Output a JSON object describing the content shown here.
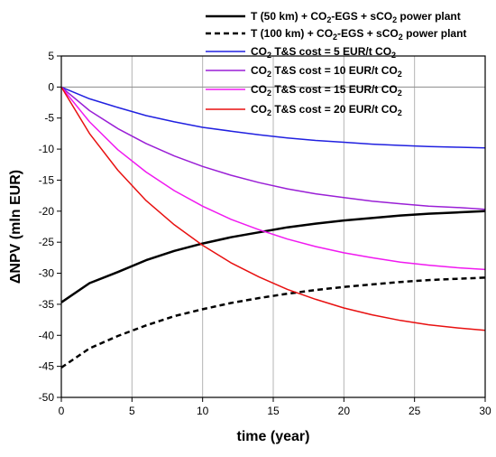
{
  "chart_data": {
    "type": "line",
    "xlabel": "time (year)",
    "ylabel": "ΔNPV (mln EUR)",
    "xlim": [
      0,
      30
    ],
    "ylim": [
      -50,
      5
    ],
    "xticks": [
      0,
      5,
      10,
      15,
      20,
      25,
      30
    ],
    "yticks": [
      5,
      0,
      -5,
      -10,
      -15,
      -20,
      -25,
      -30,
      -35,
      -40,
      -45,
      -50
    ],
    "grid": true,
    "legend_position": "top-right",
    "series": [
      {
        "name": "T (50 km) + CO2-EGS + sCO2 power plant",
        "legend": [
          {
            "t": "T (50 km) + CO"
          },
          {
            "t": "2",
            "sub": true
          },
          {
            "t": "-EGS + sCO"
          },
          {
            "t": "2",
            "sub": true
          },
          {
            "t": " power plant"
          }
        ],
        "color": "#000000",
        "style": "solid",
        "width": 2.5,
        "x": [
          0,
          2,
          4,
          6,
          8,
          10,
          12,
          14,
          16,
          18,
          20,
          22,
          24,
          26,
          28,
          30
        ],
        "y": [
          -34.7,
          -31.6,
          -29.8,
          -27.9,
          -26.4,
          -25.2,
          -24.2,
          -23.4,
          -22.6,
          -22.0,
          -21.5,
          -21.1,
          -20.7,
          -20.4,
          -20.2,
          -20.0
        ]
      },
      {
        "name": "T (100 km) + CO2-EGS + sCO2 power plant",
        "legend": [
          {
            "t": "T (100 km) + CO"
          },
          {
            "t": "2",
            "sub": true
          },
          {
            "t": "-EGS + sCO"
          },
          {
            "t": "2",
            "sub": true
          },
          {
            "t": " power plant"
          }
        ],
        "color": "#000000",
        "style": "dashed",
        "width": 2.5,
        "x": [
          0,
          2,
          4,
          6,
          8,
          10,
          12,
          14,
          16,
          18,
          20,
          22,
          24,
          26,
          28,
          30
        ],
        "y": [
          -45.2,
          -42.1,
          -40.1,
          -38.4,
          -36.9,
          -35.8,
          -34.8,
          -34.0,
          -33.3,
          -32.7,
          -32.2,
          -31.8,
          -31.4,
          -31.1,
          -30.9,
          -30.7
        ]
      },
      {
        "name": "CO2 T&S cost = 5 EUR/t CO2",
        "legend": [
          {
            "t": "CO"
          },
          {
            "t": "2",
            "sub": true
          },
          {
            "t": " T&S cost = 5 EUR/t CO"
          },
          {
            "t": "2",
            "sub": true
          }
        ],
        "color": "#2020e0",
        "style": "solid",
        "width": 1.5,
        "x": [
          0,
          2,
          4,
          6,
          8,
          10,
          12,
          14,
          16,
          18,
          20,
          22,
          24,
          26,
          28,
          30
        ],
        "y": [
          0,
          -1.9,
          -3.3,
          -4.6,
          -5.6,
          -6.5,
          -7.1,
          -7.7,
          -8.2,
          -8.6,
          -8.9,
          -9.2,
          -9.4,
          -9.6,
          -9.7,
          -9.8
        ]
      },
      {
        "name": "CO2 T&S cost = 10 EUR/t CO2",
        "legend": [
          {
            "t": "CO"
          },
          {
            "t": "2",
            "sub": true
          },
          {
            "t": " T&S cost = 10 EUR/t CO"
          },
          {
            "t": "2",
            "sub": true
          }
        ],
        "color": "#9a1fd6",
        "style": "solid",
        "width": 1.5,
        "x": [
          0,
          2,
          4,
          6,
          8,
          10,
          12,
          14,
          16,
          18,
          20,
          22,
          24,
          26,
          28,
          30
        ],
        "y": [
          0,
          -3.8,
          -6.7,
          -9.1,
          -11.1,
          -12.8,
          -14.2,
          -15.4,
          -16.4,
          -17.2,
          -17.8,
          -18.4,
          -18.8,
          -19.2,
          -19.4,
          -19.7
        ]
      },
      {
        "name": "CO2 T&S cost = 15 EUR/t CO2",
        "legend": [
          {
            "t": "CO"
          },
          {
            "t": "2",
            "sub": true
          },
          {
            "t": " T&S cost = 15 EUR/t CO"
          },
          {
            "t": "2",
            "sub": true
          }
        ],
        "color": "#f019f0",
        "style": "solid",
        "width": 1.5,
        "x": [
          0,
          2,
          4,
          6,
          8,
          10,
          12,
          14,
          16,
          18,
          20,
          22,
          24,
          26,
          28,
          30
        ],
        "y": [
          0,
          -5.6,
          -10.1,
          -13.7,
          -16.7,
          -19.2,
          -21.3,
          -23.0,
          -24.5,
          -25.7,
          -26.7,
          -27.5,
          -28.2,
          -28.7,
          -29.1,
          -29.4
        ]
      },
      {
        "name": "CO2 T&S cost = 20 EUR/t CO2",
        "legend": [
          {
            "t": "CO"
          },
          {
            "t": "2",
            "sub": true
          },
          {
            "t": " T&S cost = 20 EUR/t CO"
          },
          {
            "t": "2",
            "sub": true
          }
        ],
        "color": "#e81010",
        "style": "solid",
        "width": 1.5,
        "x": [
          0,
          2,
          4,
          6,
          8,
          10,
          12,
          14,
          16,
          18,
          20,
          22,
          24,
          26,
          28,
          30
        ],
        "y": [
          0,
          -7.5,
          -13.4,
          -18.3,
          -22.2,
          -25.5,
          -28.3,
          -30.6,
          -32.6,
          -34.2,
          -35.6,
          -36.7,
          -37.6,
          -38.3,
          -38.8,
          -39.2
        ]
      }
    ]
  }
}
